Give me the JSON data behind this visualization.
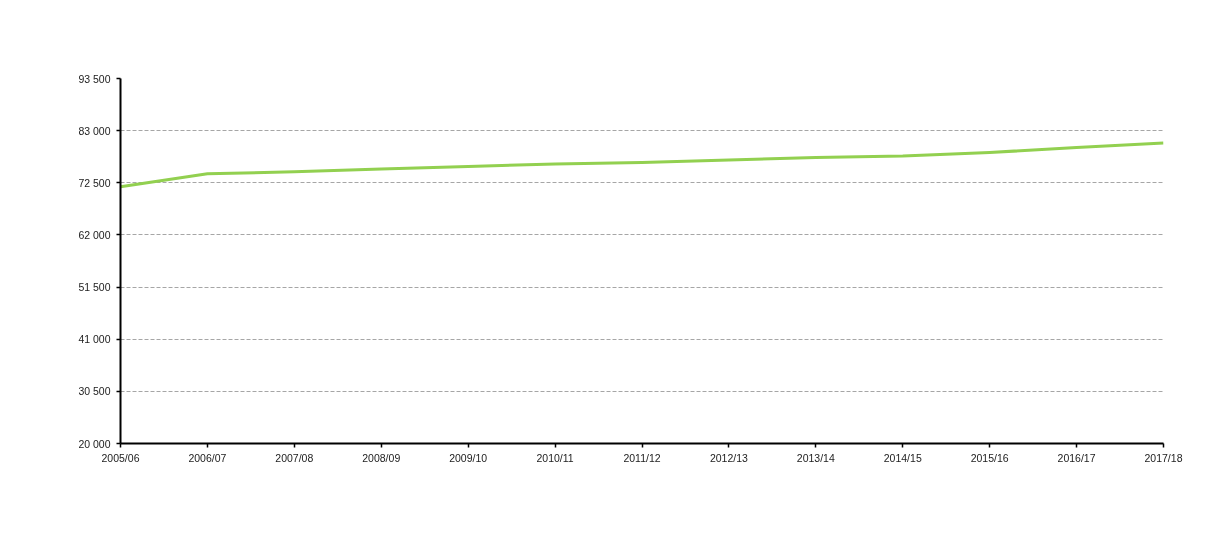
{
  "chart_data": {
    "type": "line",
    "categories": [
      "2005/06",
      "2006/07",
      "2007/08",
      "2008/09",
      "2009/10",
      "2010/11",
      "2011/12",
      "2012/13",
      "2013/14",
      "2014/15",
      "2015/16",
      "2016/17",
      "2017/18"
    ],
    "series": [
      {
        "color": "#92d050",
        "values": [
          71700,
          74300,
          74700,
          75300,
          75800,
          76300,
          76600,
          77100,
          77600,
          77900,
          78600,
          79600,
          80500
        ]
      }
    ],
    "ylim": [
      20000,
      93500
    ],
    "yticks": [
      {
        "value": 20000,
        "label": "20 000"
      },
      {
        "value": 30500,
        "label": "30 500"
      },
      {
        "value": 41000,
        "label": "41 000"
      },
      {
        "value": 51500,
        "label": "51 500"
      },
      {
        "value": 62000,
        "label": "62 000"
      },
      {
        "value": 72500,
        "label": "72 500"
      },
      {
        "value": 83000,
        "label": "83 000"
      },
      {
        "value": 93500,
        "label": "93 500"
      }
    ],
    "grid": "y",
    "marker": "none",
    "line_style": "solid"
  }
}
